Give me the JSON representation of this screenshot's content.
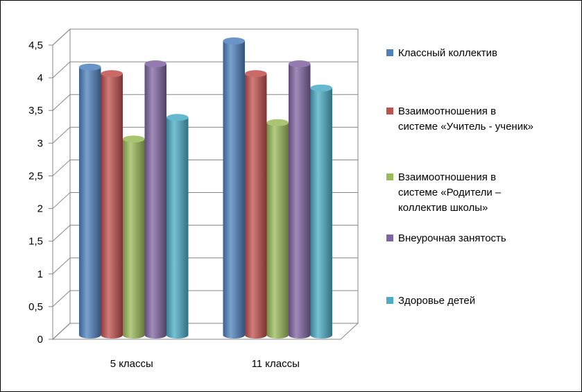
{
  "chart_data": {
    "type": "bar",
    "categories": [
      "5 классы",
      "11 классы"
    ],
    "series": [
      {
        "name": "Классный коллектив",
        "name_lines": [
          "Классный коллектив"
        ],
        "values": [
          4.1,
          4.5
        ],
        "color": "#4F81BD"
      },
      {
        "name": "Взаимоотношения в системе «Учитель - ученик»",
        "name_lines": [
          "Взаимоотношения в",
          "системе «Учитель - ученик»"
        ],
        "values": [
          4.0,
          4.0
        ],
        "color": "#C0504D"
      },
      {
        "name": "Взаимоотношения  в системе «Родители – коллектив школы»",
        "name_lines": [
          "Взаимоотношения  в",
          "системе «Родители –",
          "коллектив школы»"
        ],
        "values": [
          3.0,
          3.25
        ],
        "color": "#9BBB59"
      },
      {
        "name": "Внеурочная занятость",
        "name_lines": [
          "Внеурочная занятость"
        ],
        "values": [
          4.15,
          4.15
        ],
        "color": "#8064A2"
      },
      {
        "name": "Здоровье детей",
        "name_lines": [
          "Здоровье детей"
        ],
        "values": [
          3.33,
          3.78
        ],
        "color": "#4BACC6"
      }
    ],
    "ylim": [
      0,
      4.5
    ],
    "yticks": [
      "0",
      "0,5",
      "1",
      "1,5",
      "2",
      "2,5",
      "3",
      "3,5",
      "4",
      "4,5"
    ],
    "ytick_values": [
      0,
      0.5,
      1,
      1.5,
      2,
      2.5,
      3,
      3.5,
      4,
      4.5
    ],
    "grid": true,
    "legend": "right",
    "title": "",
    "xlabel": "",
    "ylabel": ""
  }
}
